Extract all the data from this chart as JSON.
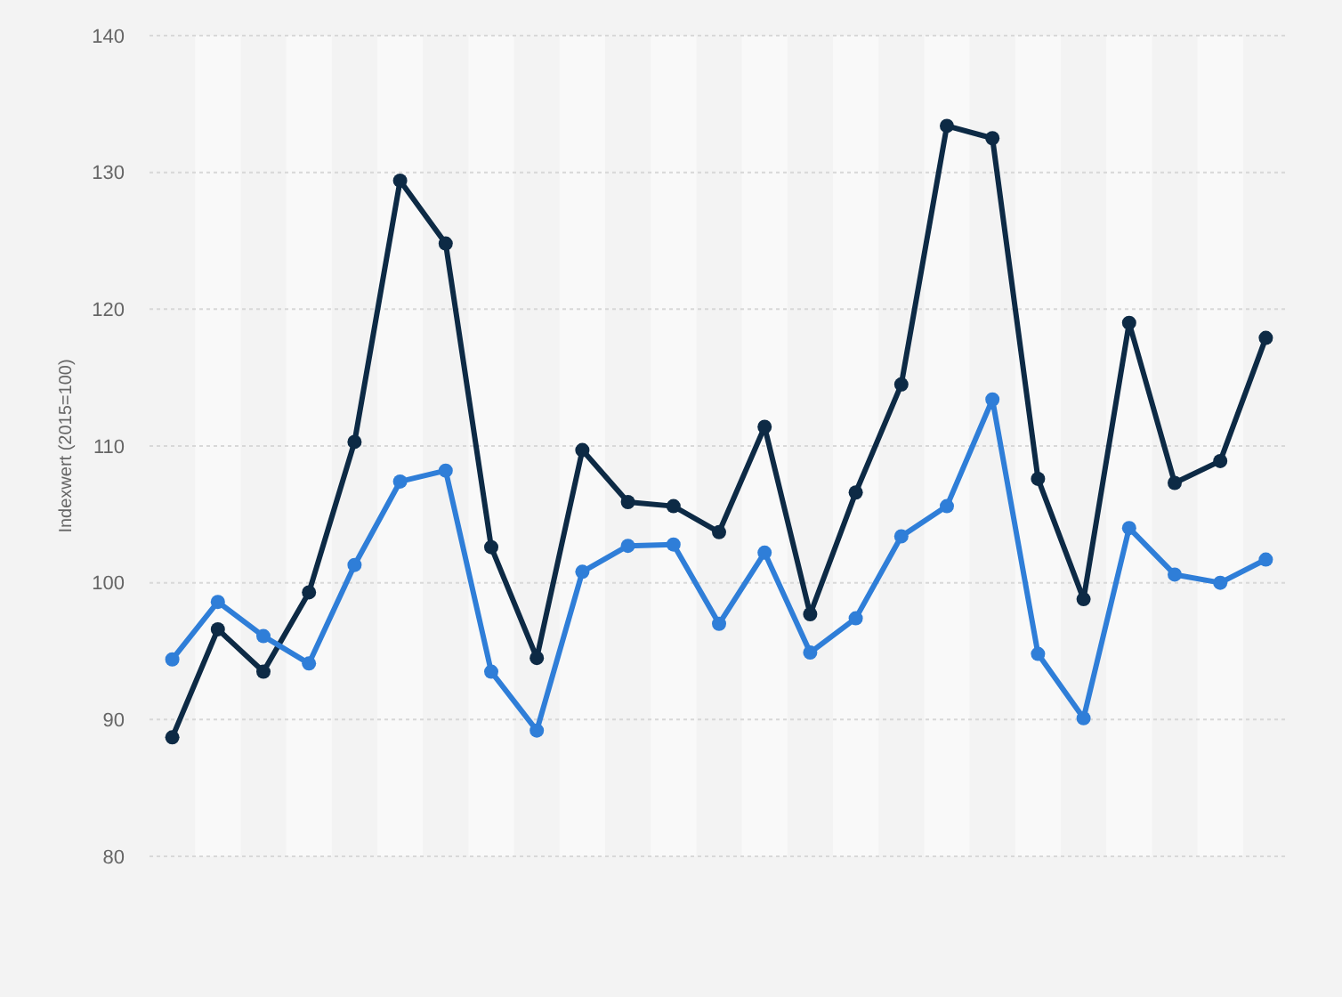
{
  "chart_data": {
    "type": "line",
    "ylabel": "Indexwert (2015=100)",
    "categories": [
      null,
      null,
      null,
      null,
      null,
      null,
      null,
      null,
      null,
      null,
      null,
      null,
      null,
      null,
      null,
      null,
      null,
      null,
      null,
      null,
      null,
      null,
      null,
      null,
      null
    ],
    "series": [
      {
        "color": "#0d2a45",
        "values": [
          88.7,
          96.6,
          93.5,
          99.3,
          110.3,
          129.4,
          124.8,
          102.6,
          94.5,
          109.7,
          105.9,
          105.6,
          103.7,
          111.4,
          97.7,
          106.6,
          114.5,
          133.4,
          132.5,
          107.6,
          98.8,
          119.0,
          107.3,
          108.9,
          117.9
        ]
      },
      {
        "color": "#2f7ed8",
        "values": [
          94.4,
          98.6,
          96.1,
          94.1,
          101.3,
          107.4,
          108.2,
          93.5,
          89.2,
          100.8,
          102.7,
          102.8,
          97.0,
          102.2,
          94.9,
          97.4,
          103.4,
          105.6,
          113.4,
          94.8,
          90.1,
          104.0,
          100.6,
          100.0,
          101.7
        ]
      }
    ],
    "ylim": [
      80,
      140
    ],
    "yticks": [
      80,
      90,
      100,
      110,
      120,
      130,
      140
    ],
    "grid": "y",
    "marker": "circle",
    "line_style": "solid"
  }
}
